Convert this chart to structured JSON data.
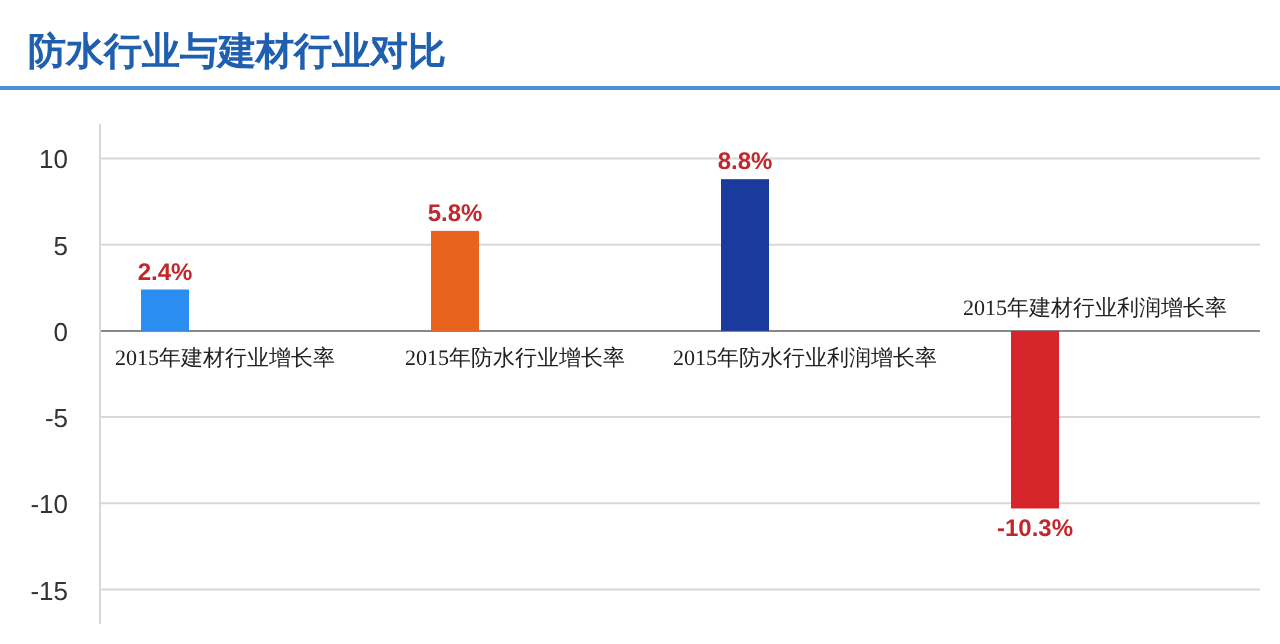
{
  "chart_data": {
    "type": "bar",
    "title": "防水行业与建材行业对比",
    "categories": [
      "2015年建材行业增长率",
      "2015年防水行业增长率",
      "2015年防水行业利润增长率",
      "2015年建材行业利润增长率"
    ],
    "values": [
      2.4,
      5.8,
      8.8,
      -10.3
    ],
    "colors": [
      "#2a8df0",
      "#e8641e",
      "#1b3a9e",
      "#d7262b"
    ],
    "value_labels": [
      "2.4%",
      "5.8%",
      "8.8%",
      "-10.3%"
    ],
    "ylim": [
      -17,
      12
    ],
    "yticks": [
      -15,
      -10,
      -5,
      0,
      5,
      10
    ],
    "grid": "y"
  }
}
